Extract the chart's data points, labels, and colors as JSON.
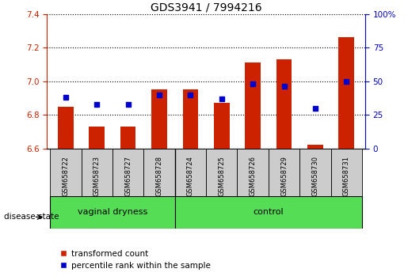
{
  "title": "GDS3941 / 7994216",
  "samples": [
    "GSM658722",
    "GSM658723",
    "GSM658727",
    "GSM658728",
    "GSM658724",
    "GSM658725",
    "GSM658726",
    "GSM658729",
    "GSM658730",
    "GSM658731"
  ],
  "transformed_count": [
    6.85,
    6.73,
    6.73,
    6.95,
    6.95,
    6.87,
    7.11,
    7.13,
    6.62,
    7.26
  ],
  "percentile_rank": [
    38,
    33,
    33,
    40,
    40,
    37,
    48,
    46,
    30,
    50
  ],
  "ylim_left": [
    6.6,
    7.4
  ],
  "ylim_right": [
    0,
    100
  ],
  "yticks_left": [
    6.6,
    6.8,
    7.0,
    7.2,
    7.4
  ],
  "yticks_right": [
    0,
    25,
    50,
    75,
    100
  ],
  "ytick_labels_right": [
    "0",
    "25",
    "50",
    "75",
    "100%"
  ],
  "bar_color": "#cc2200",
  "dot_color": "#0000cc",
  "bar_bottom": 6.6,
  "group1_label": "vaginal dryness",
  "group2_label": "control",
  "group1_count": 4,
  "group2_count": 6,
  "group_bg_color": "#55dd55",
  "sample_bg_color": "#cccccc",
  "disease_state_label": "disease state",
  "legend_items": [
    "transformed count",
    "percentile rank within the sample"
  ],
  "legend_colors": [
    "#cc2200",
    "#0000cc"
  ],
  "title_fontsize": 10,
  "tick_fontsize": 7.5,
  "axis_color_left": "#cc2200",
  "axis_color_right": "#0000cc"
}
